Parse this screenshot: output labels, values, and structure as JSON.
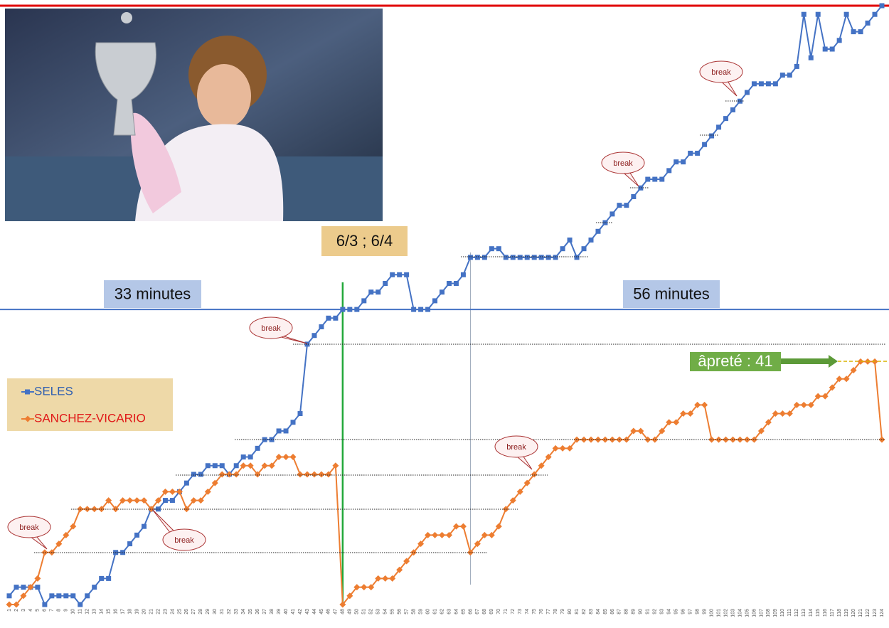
{
  "chart_data": {
    "type": "line",
    "categories": [
      1,
      2,
      3,
      4,
      5,
      6,
      7,
      8,
      9,
      10,
      11,
      12,
      13,
      14,
      15,
      16,
      17,
      18,
      19,
      20,
      21,
      22,
      23,
      24,
      25,
      26,
      27,
      28,
      29,
      30,
      31,
      32,
      33,
      34,
      35,
      36,
      37,
      38,
      39,
      40,
      41,
      42,
      43,
      44,
      45,
      46,
      47,
      48,
      49,
      50,
      51,
      52,
      53,
      54,
      55,
      56,
      57,
      58,
      59,
      60,
      61,
      62,
      63,
      64,
      65,
      66,
      67,
      68,
      69,
      70,
      71,
      72,
      73,
      74,
      75,
      76,
      77,
      78,
      79,
      80,
      81,
      82,
      83,
      84,
      85,
      86,
      87,
      88,
      89,
      90,
      91,
      92,
      93,
      94,
      95,
      96,
      97,
      98,
      99,
      100,
      101,
      102,
      103,
      104,
      105,
      106,
      107,
      108,
      109,
      110,
      111,
      112,
      113,
      114,
      115,
      116,
      117,
      118,
      119,
      120,
      121,
      122,
      123,
      124
    ],
    "series": [
      {
        "name": "SELES",
        "color": "#4472c4",
        "marker": "square",
        "values": [
          1,
          2,
          2,
          2,
          2,
          0,
          1,
          1,
          1,
          1,
          0,
          1,
          2,
          3,
          3,
          6,
          6,
          7,
          8,
          9,
          11,
          11,
          12,
          12,
          13,
          14,
          15,
          15,
          16,
          16,
          16,
          15,
          16,
          17,
          17,
          18,
          19,
          19,
          20,
          20,
          21,
          22,
          30,
          31,
          32,
          33,
          33,
          34,
          34,
          34,
          35,
          36,
          36,
          37,
          38,
          38,
          38,
          34,
          34,
          34,
          35,
          36,
          37,
          37,
          38,
          40,
          40,
          40,
          41,
          41,
          40,
          40,
          40,
          40,
          40,
          40,
          40,
          40,
          41,
          42,
          40,
          41,
          42,
          43,
          44,
          45,
          46,
          46,
          47,
          48,
          49,
          49,
          49,
          50,
          51,
          51,
          52,
          52,
          53,
          54,
          55,
          56,
          57,
          58,
          59,
          60,
          60,
          60,
          60,
          61,
          61,
          62,
          68,
          63,
          68,
          64,
          64,
          65,
          68,
          66,
          66,
          67,
          68,
          69
        ]
      },
      {
        "name": "SANCHEZ-VICARIO",
        "color": "#ed7d31",
        "marker": "diamond",
        "values": [
          0,
          0,
          1,
          2,
          3,
          6,
          6,
          7,
          8,
          9,
          11,
          11,
          11,
          11,
          12,
          11,
          12,
          12,
          12,
          12,
          11,
          12,
          13,
          13,
          13,
          11,
          12,
          12,
          13,
          14,
          15,
          15,
          15,
          16,
          16,
          15,
          16,
          16,
          17,
          17,
          17,
          15,
          15,
          15,
          15,
          15,
          16,
          0,
          1,
          2,
          2,
          2,
          3,
          3,
          3,
          4,
          5,
          6,
          7,
          8,
          8,
          8,
          8,
          9,
          9,
          6,
          7,
          8,
          8,
          9,
          11,
          12,
          13,
          14,
          15,
          16,
          17,
          18,
          18,
          18,
          19,
          19,
          19,
          19,
          19,
          19,
          19,
          19,
          20,
          20,
          19,
          19,
          20,
          21,
          21,
          22,
          22,
          23,
          23,
          19,
          19,
          19,
          19,
          19,
          19,
          19,
          20,
          21,
          22,
          22,
          22,
          23,
          23,
          23,
          24,
          24,
          25,
          26,
          26,
          27,
          28,
          28,
          28,
          19
        ]
      }
    ],
    "ylim": [
      0,
      69
    ],
    "hlines": [
      {
        "y": 69,
        "color": "#e00000"
      },
      {
        "y": 34,
        "color": "#4472c4"
      }
    ],
    "vlines": [
      {
        "x": 48,
        "color": "#22a83a"
      },
      {
        "x": 66,
        "color": "#9aa6b8"
      }
    ],
    "annotations": {
      "left_time": "33 minutes",
      "right_time": "56 minutes",
      "score": "6/3 ; 6/4",
      "harshness": "âpreté : 41",
      "breaks": [
        "break",
        "break",
        "break",
        "break",
        "break",
        "break"
      ]
    }
  }
}
